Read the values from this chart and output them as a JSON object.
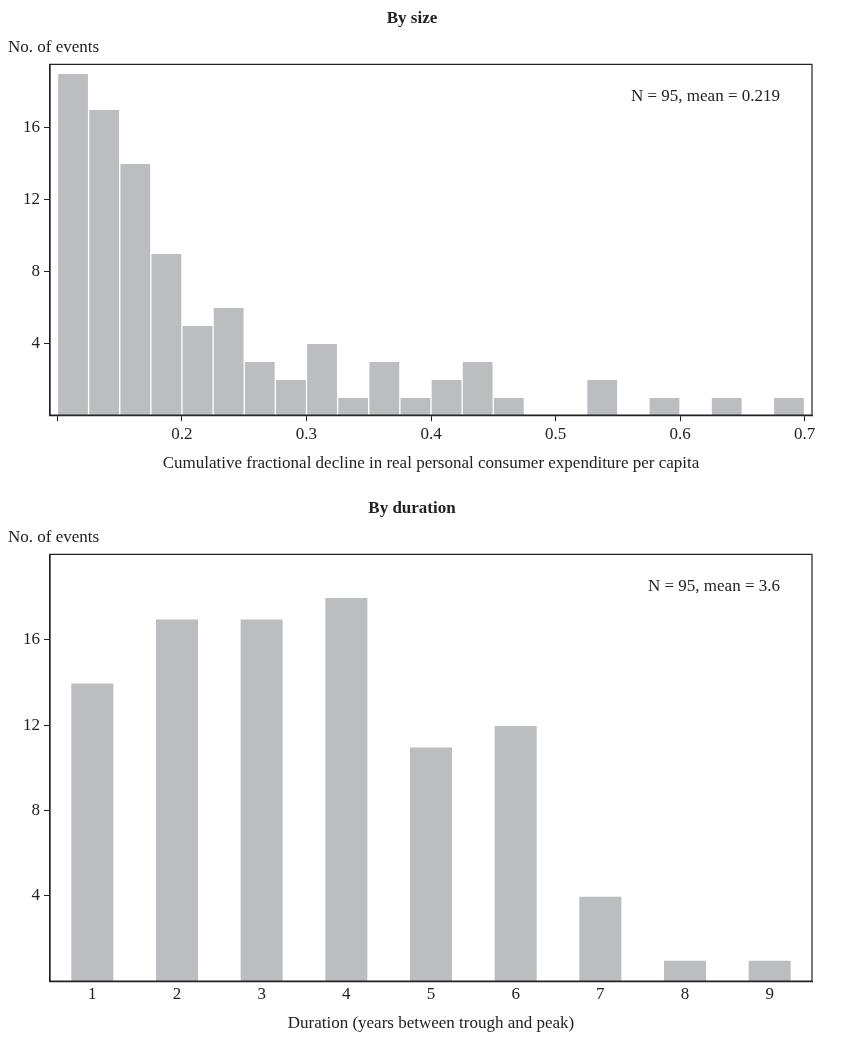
{
  "chart_data": [
    {
      "type": "histogram",
      "title": "By size",
      "ylabel": "No. of events",
      "xlabel": "Cumulative fractional decline in real personal consumer expenditure per capita",
      "annotations": [
        "N = 95, mean = 0.219"
      ],
      "color": "#bcbdc1",
      "bins": [
        0.1,
        0.125,
        0.15,
        0.175,
        0.2,
        0.225,
        0.25,
        0.275,
        0.3,
        0.325,
        0.35,
        0.375,
        0.4,
        0.425,
        0.45,
        0.475,
        0.5,
        0.525,
        0.55,
        0.575,
        0.6,
        0.625,
        0.65,
        0.675,
        0.7
      ],
      "values": [
        19,
        17,
        14,
        9,
        5,
        6,
        3,
        2,
        4,
        1,
        3,
        1,
        2,
        3,
        1,
        0,
        0,
        2,
        0,
        1,
        0,
        1,
        0,
        1
      ],
      "xlim": [
        0.094,
        0.706
      ],
      "xticks": [
        {
          "value": 0.1,
          "label": null
        },
        0.2,
        0.3,
        0.4,
        0.5,
        0.6,
        0.7
      ],
      "ylim": [
        0,
        19.5
      ],
      "yticks": [
        4,
        8,
        12,
        16
      ],
      "grid": false,
      "legend": false
    },
    {
      "type": "bar",
      "title": "By duration",
      "ylabel": "No. of events",
      "xlabel": "Duration (years between trough and peak)",
      "annotations": [
        "N = 95, mean = 3.6"
      ],
      "color": "#bcbdc1",
      "categories": [
        "1",
        "2",
        "3",
        "4",
        "5",
        "6",
        "7",
        "8",
        "9"
      ],
      "values": [
        14,
        17,
        17,
        18,
        11,
        12,
        4,
        1,
        1
      ],
      "ylim": [
        0,
        20
      ],
      "yticks": [
        4,
        8,
        12,
        16
      ],
      "grid": false,
      "legend": false
    }
  ]
}
